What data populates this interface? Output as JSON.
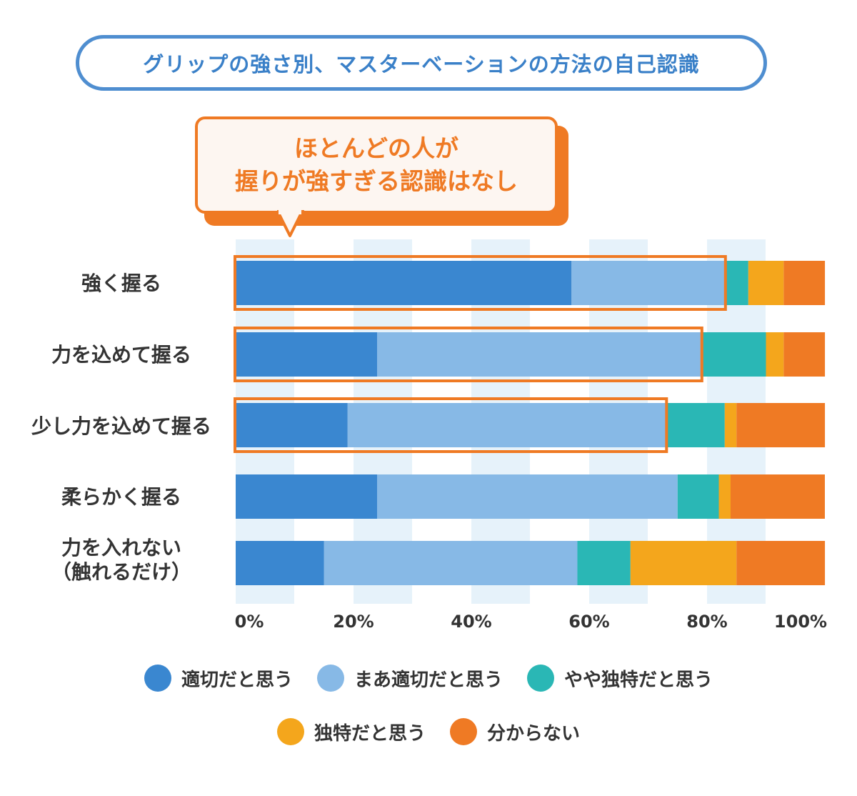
{
  "title": "グリップの強さ別、マスターベーションの方法の自己認識",
  "callout": {
    "line1": "ほとんどの人が",
    "line2": "握りが強すぎる認識はなし"
  },
  "colors": {
    "title": "#3a80c8",
    "accent": "#ef7a24",
    "stripe": "#e6f2fa"
  },
  "chart_data": {
    "type": "bar",
    "orientation": "horizontal",
    "stacked": true,
    "categories": [
      "強く握る",
      "力を込めて握る",
      "少し力を込めて握る",
      "柔らかく握る",
      "力を入れない\n（触れるだけ）"
    ],
    "series": [
      {
        "name": "適切だと思う",
        "color": "#3a87d0",
        "values": [
          57,
          24,
          19,
          24,
          15
        ]
      },
      {
        "name": "まあ適切だと思う",
        "color": "#87b9e6",
        "values": [
          26,
          55,
          54,
          51,
          43
        ]
      },
      {
        "name": "やや独特だと思う",
        "color": "#2ab7b5",
        "values": [
          4,
          11,
          10,
          7,
          9
        ]
      },
      {
        "name": "独特だと思う",
        "color": "#f4a61c",
        "values": [
          6,
          3,
          2,
          2,
          18
        ]
      },
      {
        "name": "分からない",
        "color": "#ef7a24",
        "values": [
          8,
          6,
          15,
          16,
          15
        ]
      }
    ],
    "x_ticks": [
      "0%",
      "20%",
      "40%",
      "60%",
      "80%",
      "100%"
    ],
    "xlim": [
      0,
      100
    ],
    "highlighted_categories": [
      0,
      1,
      2
    ],
    "legend_position": "bottom"
  }
}
